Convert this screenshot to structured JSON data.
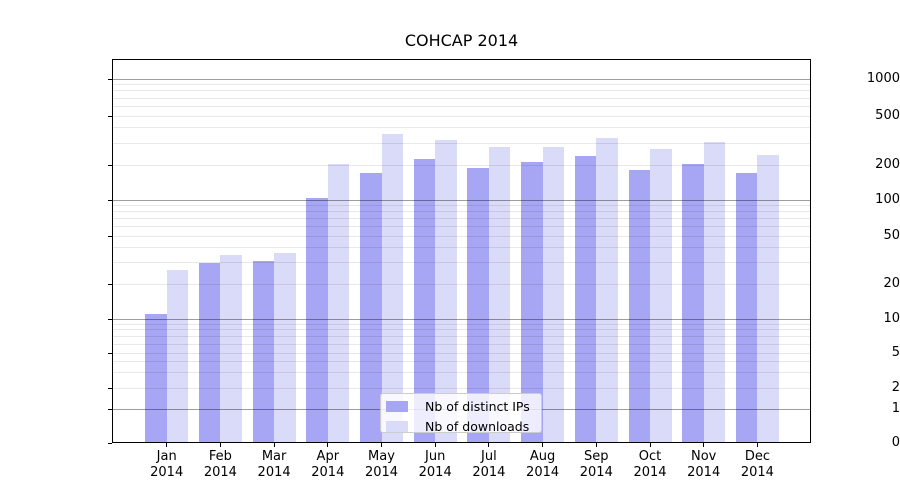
{
  "title": "COHCAP 2014",
  "chart_data": {
    "type": "bar",
    "title": "COHCAP 2014",
    "yscale": "symlog",
    "ylim": [
      0,
      1490
    ],
    "y_ticks": [
      0,
      1,
      2,
      5,
      10,
      20,
      50,
      100,
      200,
      500,
      1000
    ],
    "grid": true,
    "legend_position": "inside-lower-center",
    "year": "2014",
    "months": [
      "Jan",
      "Feb",
      "Mar",
      "Apr",
      "May",
      "Jun",
      "Jul",
      "Aug",
      "Sep",
      "Oct",
      "Nov",
      "Dec"
    ],
    "categories": [
      "Jan 2014",
      "Feb 2014",
      "Mar 2014",
      "Apr 2014",
      "May 2014",
      "Jun 2014",
      "Jul 2014",
      "Aug 2014",
      "Sep 2014",
      "Oct 2014",
      "Nov 2014",
      "Dec 2014"
    ],
    "series": [
      {
        "name": "Nb of distinct IPs",
        "color": "#a6a6f4",
        "values": [
          11,
          30,
          31,
          105,
          170,
          225,
          190,
          210,
          238,
          180,
          205,
          172
        ]
      },
      {
        "name": "Nb of downloads",
        "color": "#dadaf9",
        "values": [
          26,
          35,
          36,
          205,
          355,
          320,
          278,
          280,
          334,
          268,
          305,
          240
        ]
      }
    ],
    "grid_major_color": "rgba(0,0,0,0.38)",
    "grid_minor_color": "rgba(0,0,0,0.09)"
  }
}
